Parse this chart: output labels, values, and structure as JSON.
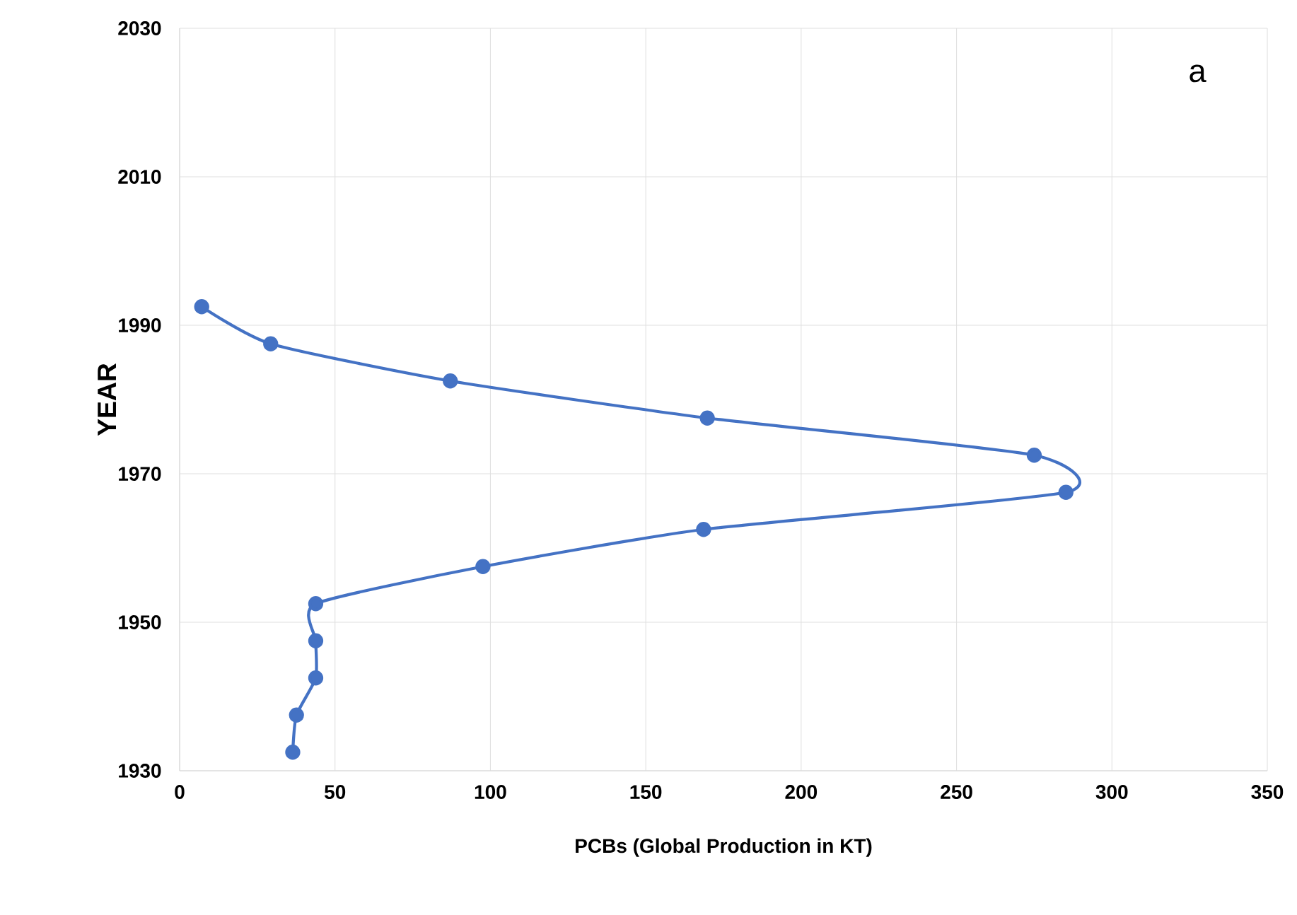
{
  "chart_data": {
    "type": "line",
    "xlabel": "PCBs (Global Production in KT)",
    "ylabel": "YEAR",
    "annotations": [
      "a"
    ],
    "x": [
      36.4,
      37.6,
      43.8,
      43.8,
      43.8,
      97.6,
      168.6,
      285.2,
      275,
      169.8,
      87.1,
      29.3,
      7.1
    ],
    "values": [
      1932.5,
      1937.5,
      1942.5,
      1947.5,
      1952.5,
      1957.5,
      1962.5,
      1967.5,
      1972.5,
      1977.5,
      1982.5,
      1987.5,
      1992.5
    ],
    "color": "#4472c4",
    "xlim": [
      0,
      350
    ],
    "xticks": [
      0,
      50,
      100,
      150,
      200,
      250,
      300,
      350
    ],
    "ylim": [
      1930,
      2030
    ],
    "yticks": [
      1930,
      1950,
      1970,
      1990,
      2010,
      2030
    ],
    "grid": true,
    "marker": "circle",
    "line_style": "solid"
  }
}
